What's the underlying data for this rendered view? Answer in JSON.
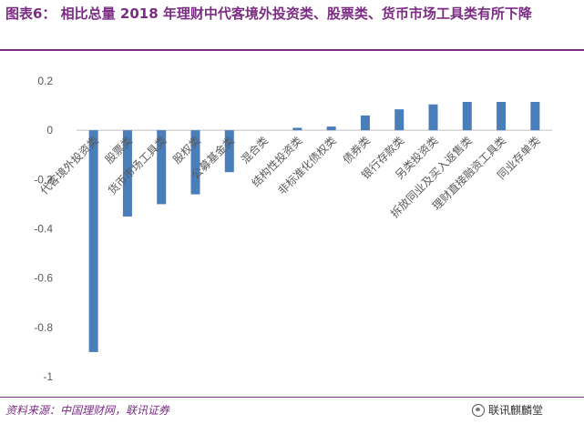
{
  "header": {
    "title": "图表6： 相比总量 2018 年理财中代客境外投资类、股票类、货币市场工具类有所下降"
  },
  "footer": {
    "source": "资料来源：中国理财网，联讯证券",
    "watermark": "联讯麒麟堂",
    "watermark_icon": "wechat-icon"
  },
  "colors": {
    "bar": "#4a7ebb",
    "accent": "#7b2c83"
  },
  "chart_data": {
    "type": "bar",
    "title": "",
    "xlabel": "",
    "ylabel": "",
    "ylim": [
      -1,
      0.2
    ],
    "yticks": [
      0.2,
      0,
      -0.2,
      -0.4,
      -0.6,
      -0.8,
      -1
    ],
    "ytick_labels": [
      "0.2",
      "0",
      "-0.2",
      "-0.4",
      "-0.6",
      "-0.8",
      "-1"
    ],
    "grid": false,
    "categories": [
      "代客境外投资类",
      "股票类",
      "货币市场工具类",
      "股权类",
      "公募基金类",
      "混合类",
      "结构性投资类",
      "非标准化债权类",
      "债券类",
      "银行存款类",
      "另类投资类",
      "拆放同业及买入返售类",
      "理财直接融资工具类",
      "同业存单类"
    ],
    "values": [
      -0.9,
      -0.35,
      -0.3,
      -0.26,
      -0.17,
      0.0,
      0.01,
      0.015,
      0.06,
      0.085,
      0.105,
      0.115,
      0.115,
      0.115
    ]
  }
}
